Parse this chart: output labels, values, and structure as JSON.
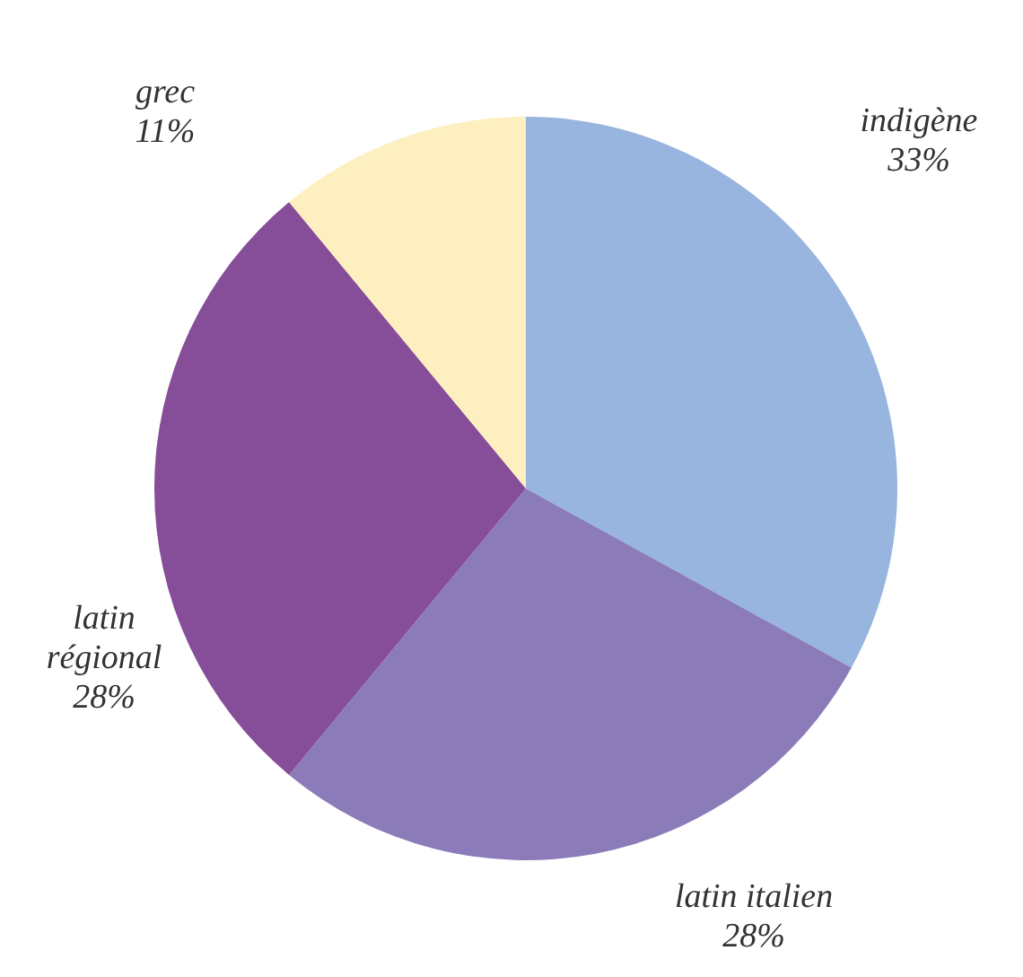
{
  "chart_data": {
    "type": "pie",
    "categories": [
      "indigène",
      "latin italien",
      "latin régional",
      "grec"
    ],
    "values": [
      33,
      28,
      28,
      11
    ],
    "colors": [
      "#97b5de",
      "#8b7cb9",
      "#864d98",
      "#fdefc0"
    ],
    "value_labels": [
      "33%",
      "28%",
      "28%",
      "11%"
    ]
  }
}
